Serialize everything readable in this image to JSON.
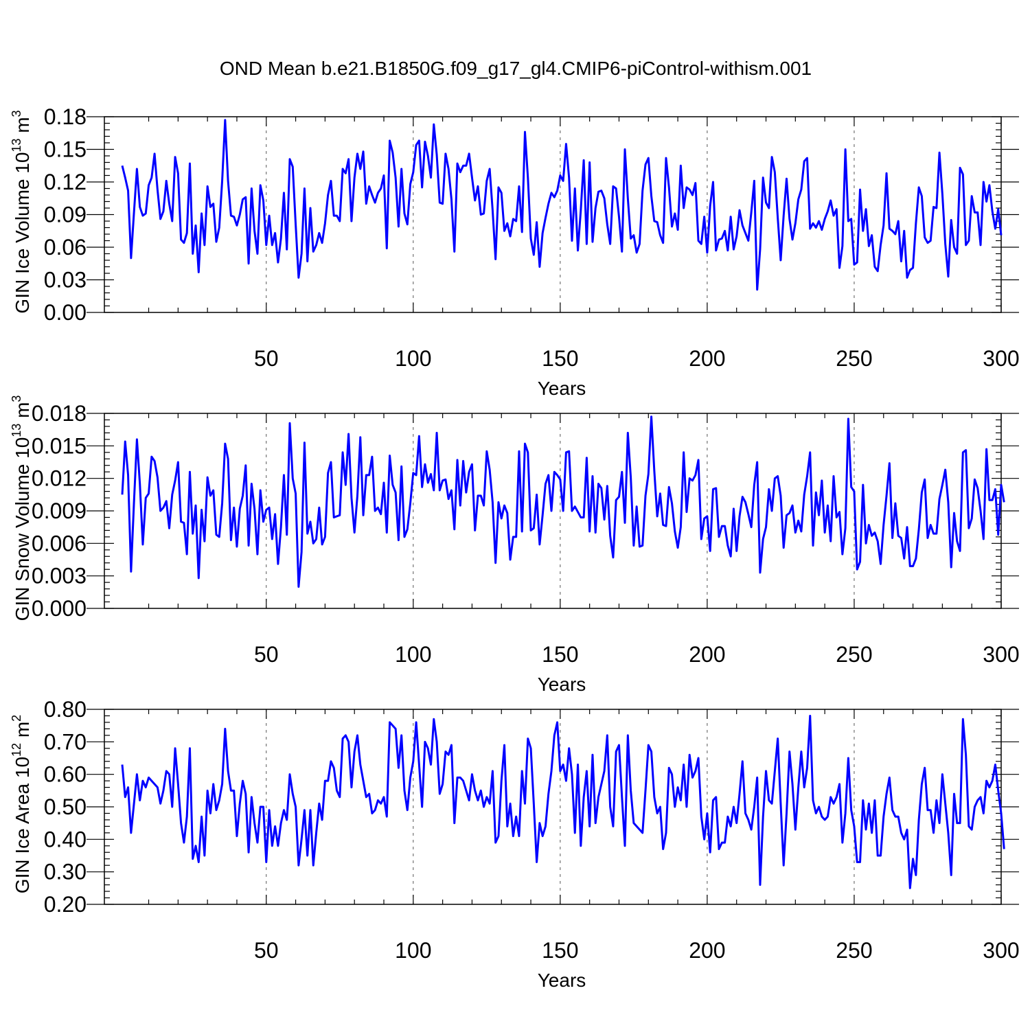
{
  "title": "OND Mean b.e21.B1850G.f09_g17_gl4.CMIP6-piControl-withism.001",
  "colors": {
    "series": "#0000ff",
    "grid": "#555555"
  },
  "chart_data": [
    {
      "type": "line",
      "ylabel_main": "GIN Ice Volume 10",
      "ylabel_exp": "13",
      "ylabel_unit": " m",
      "ylabel_unit_exp": "3",
      "xlabel": "Years",
      "xlim": [
        1,
        300
      ],
      "ylim": [
        0,
        0.18
      ],
      "xticks": [
        50,
        100,
        150,
        200,
        250,
        300
      ],
      "xtick_labels": [
        "50",
        "100",
        "150",
        "200",
        "250",
        "300"
      ],
      "yticks": [
        0,
        0.03,
        0.06,
        0.09,
        0.12,
        0.15,
        0.18
      ],
      "ytick_labels": [
        "0.00",
        "0.03",
        "0.06",
        "0.09",
        "0.12",
        "0.15",
        "0.18"
      ],
      "grid_x": [
        50,
        100,
        150,
        200,
        250
      ],
      "x_start": 1,
      "values": [
        0.135,
        0.124,
        0.112,
        0.05,
        0.092,
        0.132,
        0.097,
        0.089,
        0.091,
        0.117,
        0.124,
        0.146,
        0.113,
        0.086,
        0.093,
        0.121,
        0.1,
        0.084,
        0.143,
        0.128,
        0.067,
        0.064,
        0.073,
        0.137,
        0.054,
        0.08,
        0.037,
        0.091,
        0.062,
        0.116,
        0.097,
        0.1,
        0.065,
        0.078,
        0.121,
        0.177,
        0.121,
        0.089,
        0.088,
        0.08,
        0.09,
        0.104,
        0.106,
        0.045,
        0.114,
        0.075,
        0.054,
        0.117,
        0.103,
        0.062,
        0.089,
        0.062,
        0.073,
        0.046,
        0.068,
        0.11,
        0.058,
        0.141,
        0.134,
        0.081,
        0.032,
        0.054,
        0.114,
        0.047,
        0.096,
        0.056,
        0.062,
        0.073,
        0.064,
        0.082,
        0.108,
        0.121,
        0.089,
        0.089,
        0.084,
        0.132,
        0.128,
        0.141,
        0.084,
        0.124,
        0.146,
        0.132,
        0.148,
        0.1,
        0.116,
        0.108,
        0.101,
        0.11,
        0.114,
        0.126,
        0.059,
        0.158,
        0.147,
        0.124,
        0.079,
        0.132,
        0.091,
        0.081,
        0.118,
        0.129,
        0.154,
        0.158,
        0.115,
        0.157,
        0.144,
        0.124,
        0.173,
        0.145,
        0.101,
        0.1,
        0.146,
        0.132,
        0.104,
        0.056,
        0.137,
        0.129,
        0.135,
        0.135,
        0.146,
        0.124,
        0.103,
        0.116,
        0.09,
        0.091,
        0.121,
        0.132,
        0.094,
        0.049,
        0.115,
        0.11,
        0.075,
        0.082,
        0.07,
        0.086,
        0.084,
        0.116,
        0.074,
        0.166,
        0.124,
        0.068,
        0.053,
        0.083,
        0.042,
        0.073,
        0.087,
        0.1,
        0.11,
        0.106,
        0.112,
        0.126,
        0.121,
        0.155,
        0.124,
        0.066,
        0.114,
        0.057,
        0.094,
        0.14,
        0.063,
        0.138,
        0.065,
        0.096,
        0.111,
        0.112,
        0.105,
        0.081,
        0.063,
        0.116,
        0.114,
        0.088,
        0.056,
        0.15,
        0.105,
        0.068,
        0.071,
        0.055,
        0.063,
        0.112,
        0.136,
        0.142,
        0.107,
        0.084,
        0.083,
        0.071,
        0.064,
        0.142,
        0.115,
        0.079,
        0.091,
        0.076,
        0.135,
        0.096,
        0.115,
        0.113,
        0.108,
        0.119,
        0.066,
        0.063,
        0.088,
        0.055,
        0.098,
        0.12,
        0.057,
        0.067,
        0.068,
        0.075,
        0.057,
        0.088,
        0.058,
        0.07,
        0.094,
        0.08,
        0.073,
        0.066,
        0.092,
        0.121,
        0.021,
        0.058,
        0.124,
        0.101,
        0.096,
        0.143,
        0.129,
        0.087,
        0.048,
        0.089,
        0.123,
        0.086,
        0.067,
        0.082,
        0.104,
        0.113,
        0.139,
        0.142,
        0.077,
        0.082,
        0.078,
        0.084,
        0.076,
        0.086,
        0.093,
        0.103,
        0.089,
        0.095,
        0.041,
        0.061,
        0.15,
        0.084,
        0.086,
        0.044,
        0.046,
        0.113,
        0.075,
        0.095,
        0.061,
        0.071,
        0.042,
        0.038,
        0.062,
        0.08,
        0.128,
        0.077,
        0.075,
        0.072,
        0.084,
        0.047,
        0.075,
        0.032,
        0.039,
        0.041,
        0.082,
        0.115,
        0.107,
        0.069,
        0.064,
        0.066,
        0.097,
        0.096,
        0.147,
        0.109,
        0.063,
        0.033,
        0.085,
        0.06,
        0.054,
        0.133,
        0.127,
        0.062,
        0.066,
        0.107,
        0.092,
        0.092,
        0.062,
        0.12,
        0.102,
        0.117,
        0.093,
        0.077,
        0.095,
        0.071
      ]
    },
    {
      "type": "line",
      "ylabel_main": "GIN Snow Volume 10",
      "ylabel_exp": "13",
      "ylabel_unit": " m",
      "ylabel_unit_exp": "3",
      "xlabel": "Years",
      "xlim": [
        1,
        300
      ],
      "ylim": [
        0,
        0.018
      ],
      "xticks": [
        50,
        100,
        150,
        200,
        250,
        300
      ],
      "xtick_labels": [
        "50",
        "100",
        "150",
        "200",
        "250",
        "300"
      ],
      "yticks": [
        0,
        0.003,
        0.006,
        0.009,
        0.012,
        0.015,
        0.018
      ],
      "ytick_labels": [
        "0.000",
        "0.003",
        "0.006",
        "0.009",
        "0.012",
        "0.015",
        "0.018"
      ],
      "grid_x": [
        50,
        100,
        150,
        200,
        250
      ],
      "x_start": 1,
      "values": [
        0.0105,
        0.0154,
        0.0123,
        0.0034,
        0.0098,
        0.0156,
        0.0115,
        0.0059,
        0.0102,
        0.0106,
        0.014,
        0.0136,
        0.0121,
        0.009,
        0.0093,
        0.0099,
        0.0074,
        0.0105,
        0.0118,
        0.0135,
        0.008,
        0.0079,
        0.005,
        0.0126,
        0.0069,
        0.0095,
        0.0028,
        0.0091,
        0.0062,
        0.0121,
        0.0104,
        0.0109,
        0.0068,
        0.0066,
        0.0097,
        0.0152,
        0.0138,
        0.0063,
        0.0093,
        0.0057,
        0.0092,
        0.0104,
        0.0132,
        0.0058,
        0.0115,
        0.0092,
        0.005,
        0.0109,
        0.008,
        0.0091,
        0.0093,
        0.0064,
        0.0087,
        0.0041,
        0.0075,
        0.0123,
        0.0068,
        0.0171,
        0.012,
        0.0106,
        0.002,
        0.0052,
        0.0153,
        0.0069,
        0.008,
        0.006,
        0.0064,
        0.0093,
        0.0059,
        0.0066,
        0.0125,
        0.0135,
        0.0084,
        0.0085,
        0.0086,
        0.0144,
        0.0114,
        0.0161,
        0.0102,
        0.007,
        0.0104,
        0.0158,
        0.0086,
        0.0123,
        0.0123,
        0.014,
        0.009,
        0.0093,
        0.0087,
        0.0116,
        0.007,
        0.0141,
        0.0114,
        0.0107,
        0.0063,
        0.0131,
        0.0066,
        0.0073,
        0.0097,
        0.0125,
        0.0123,
        0.0159,
        0.0112,
        0.0133,
        0.0116,
        0.0124,
        0.0109,
        0.0162,
        0.0109,
        0.0118,
        0.0119,
        0.0101,
        0.0109,
        0.0073,
        0.0137,
        0.0095,
        0.0136,
        0.0107,
        0.0126,
        0.0133,
        0.0072,
        0.0104,
        0.0104,
        0.0095,
        0.0145,
        0.0128,
        0.0098,
        0.0042,
        0.0098,
        0.0083,
        0.0095,
        0.0088,
        0.0045,
        0.0066,
        0.0066,
        0.0145,
        0.0071,
        0.0152,
        0.0144,
        0.0072,
        0.0074,
        0.0105,
        0.0059,
        0.0086,
        0.0115,
        0.0123,
        0.009,
        0.0126,
        0.0123,
        0.0119,
        0.009,
        0.0144,
        0.0145,
        0.009,
        0.0094,
        0.0089,
        0.0084,
        0.0084,
        0.0139,
        0.0071,
        0.0122,
        0.007,
        0.0115,
        0.0111,
        0.0082,
        0.0113,
        0.0067,
        0.0047,
        0.01,
        0.0103,
        0.0126,
        0.0079,
        0.0162,
        0.0121,
        0.0058,
        0.0094,
        0.0057,
        0.0058,
        0.0104,
        0.0124,
        0.0177,
        0.0127,
        0.0085,
        0.0106,
        0.0077,
        0.0076,
        0.0112,
        0.0097,
        0.0071,
        0.0056,
        0.0075,
        0.0144,
        0.0089,
        0.012,
        0.0118,
        0.0123,
        0.0137,
        0.0064,
        0.0083,
        0.0085,
        0.0053,
        0.011,
        0.0111,
        0.0066,
        0.0076,
        0.0076,
        0.0058,
        0.0048,
        0.0092,
        0.0053,
        0.0085,
        0.0103,
        0.0098,
        0.0087,
        0.0075,
        0.0114,
        0.0135,
        0.0033,
        0.0064,
        0.0075,
        0.011,
        0.009,
        0.012,
        0.0122,
        0.0104,
        0.0056,
        0.0086,
        0.0088,
        0.0095,
        0.007,
        0.0081,
        0.0071,
        0.0105,
        0.0122,
        0.0144,
        0.0058,
        0.0107,
        0.0086,
        0.0118,
        0.007,
        0.0095,
        0.0062,
        0.0122,
        0.0084,
        0.0089,
        0.005,
        0.0074,
        0.0175,
        0.0112,
        0.0108,
        0.0036,
        0.0043,
        0.0114,
        0.006,
        0.0077,
        0.0067,
        0.007,
        0.0062,
        0.0041,
        0.0077,
        0.0104,
        0.0134,
        0.0065,
        0.0097,
        0.0067,
        0.0065,
        0.0046,
        0.0075,
        0.0039,
        0.0039,
        0.0046,
        0.0073,
        0.0107,
        0.0119,
        0.0065,
        0.0077,
        0.0069,
        0.0069,
        0.0101,
        0.0114,
        0.0128,
        0.0098,
        0.0038,
        0.0088,
        0.0062,
        0.0053,
        0.0144,
        0.0146,
        0.0074,
        0.0083,
        0.0119,
        0.0111,
        0.009,
        0.0064,
        0.0147,
        0.01,
        0.01,
        0.011,
        0.0068,
        0.0114,
        0.0098
      ]
    },
    {
      "type": "line",
      "ylabel_main": "GIN Ice Area 10",
      "ylabel_exp": "12",
      "ylabel_unit": " m",
      "ylabel_unit_exp": "2",
      "xlabel": "Years",
      "xlim": [
        1,
        300
      ],
      "ylim": [
        0.2,
        0.8
      ],
      "xticks": [
        50,
        100,
        150,
        200,
        250,
        300
      ],
      "xtick_labels": [
        "50",
        "100",
        "150",
        "200",
        "250",
        "300"
      ],
      "yticks": [
        0.2,
        0.3,
        0.4,
        0.5,
        0.6,
        0.7,
        0.8
      ],
      "ytick_labels": [
        "0.20",
        "0.30",
        "0.40",
        "0.50",
        "0.60",
        "0.70",
        "0.80"
      ],
      "grid_x": [
        50,
        100,
        150,
        200,
        250
      ],
      "x_start": 1,
      "values": [
        0.63,
        0.53,
        0.56,
        0.42,
        0.51,
        0.6,
        0.52,
        0.58,
        0.56,
        0.59,
        0.58,
        0.57,
        0.56,
        0.51,
        0.55,
        0.61,
        0.6,
        0.5,
        0.68,
        0.57,
        0.45,
        0.39,
        0.47,
        0.68,
        0.34,
        0.38,
        0.33,
        0.47,
        0.35,
        0.55,
        0.48,
        0.57,
        0.49,
        0.52,
        0.57,
        0.74,
        0.61,
        0.55,
        0.55,
        0.41,
        0.51,
        0.58,
        0.54,
        0.36,
        0.53,
        0.45,
        0.39,
        0.5,
        0.5,
        0.33,
        0.49,
        0.38,
        0.44,
        0.38,
        0.45,
        0.49,
        0.46,
        0.6,
        0.54,
        0.5,
        0.32,
        0.4,
        0.49,
        0.35,
        0.49,
        0.32,
        0.42,
        0.51,
        0.46,
        0.58,
        0.58,
        0.64,
        0.62,
        0.55,
        0.53,
        0.71,
        0.72,
        0.7,
        0.56,
        0.67,
        0.72,
        0.63,
        0.58,
        0.53,
        0.54,
        0.48,
        0.49,
        0.52,
        0.51,
        0.53,
        0.47,
        0.76,
        0.75,
        0.74,
        0.62,
        0.72,
        0.55,
        0.49,
        0.59,
        0.64,
        0.76,
        0.63,
        0.5,
        0.7,
        0.68,
        0.63,
        0.77,
        0.7,
        0.54,
        0.57,
        0.67,
        0.66,
        0.69,
        0.45,
        0.59,
        0.59,
        0.58,
        0.55,
        0.52,
        0.6,
        0.55,
        0.52,
        0.55,
        0.5,
        0.53,
        0.51,
        0.61,
        0.39,
        0.41,
        0.58,
        0.69,
        0.44,
        0.51,
        0.41,
        0.47,
        0.41,
        0.61,
        0.51,
        0.71,
        0.68,
        0.51,
        0.33,
        0.45,
        0.41,
        0.44,
        0.54,
        0.61,
        0.72,
        0.76,
        0.61,
        0.63,
        0.58,
        0.68,
        0.6,
        0.42,
        0.63,
        0.38,
        0.53,
        0.61,
        0.44,
        0.66,
        0.45,
        0.53,
        0.57,
        0.61,
        0.72,
        0.5,
        0.44,
        0.67,
        0.69,
        0.53,
        0.38,
        0.72,
        0.55,
        0.45,
        0.44,
        0.43,
        0.42,
        0.55,
        0.69,
        0.67,
        0.53,
        0.48,
        0.5,
        0.37,
        0.42,
        0.62,
        0.6,
        0.5,
        0.56,
        0.52,
        0.63,
        0.5,
        0.66,
        0.59,
        0.61,
        0.65,
        0.47,
        0.4,
        0.48,
        0.36,
        0.52,
        0.53,
        0.37,
        0.39,
        0.39,
        0.47,
        0.44,
        0.5,
        0.45,
        0.54,
        0.64,
        0.48,
        0.46,
        0.43,
        0.5,
        0.59,
        0.26,
        0.47,
        0.61,
        0.52,
        0.51,
        0.61,
        0.71,
        0.51,
        0.32,
        0.48,
        0.67,
        0.57,
        0.43,
        0.56,
        0.67,
        0.56,
        0.62,
        0.78,
        0.52,
        0.48,
        0.5,
        0.47,
        0.46,
        0.47,
        0.53,
        0.51,
        0.53,
        0.57,
        0.39,
        0.48,
        0.65,
        0.49,
        0.44,
        0.33,
        0.33,
        0.52,
        0.43,
        0.51,
        0.42,
        0.52,
        0.35,
        0.35,
        0.47,
        0.54,
        0.59,
        0.49,
        0.47,
        0.47,
        0.42,
        0.4,
        0.43,
        0.25,
        0.34,
        0.29,
        0.46,
        0.57,
        0.62,
        0.49,
        0.49,
        0.42,
        0.52,
        0.45,
        0.6,
        0.51,
        0.42,
        0.29,
        0.54,
        0.45,
        0.45,
        0.77,
        0.66,
        0.44,
        0.43,
        0.5,
        0.52,
        0.53,
        0.48,
        0.58,
        0.56,
        0.58,
        0.63,
        0.55,
        0.48,
        0.37
      ]
    }
  ]
}
